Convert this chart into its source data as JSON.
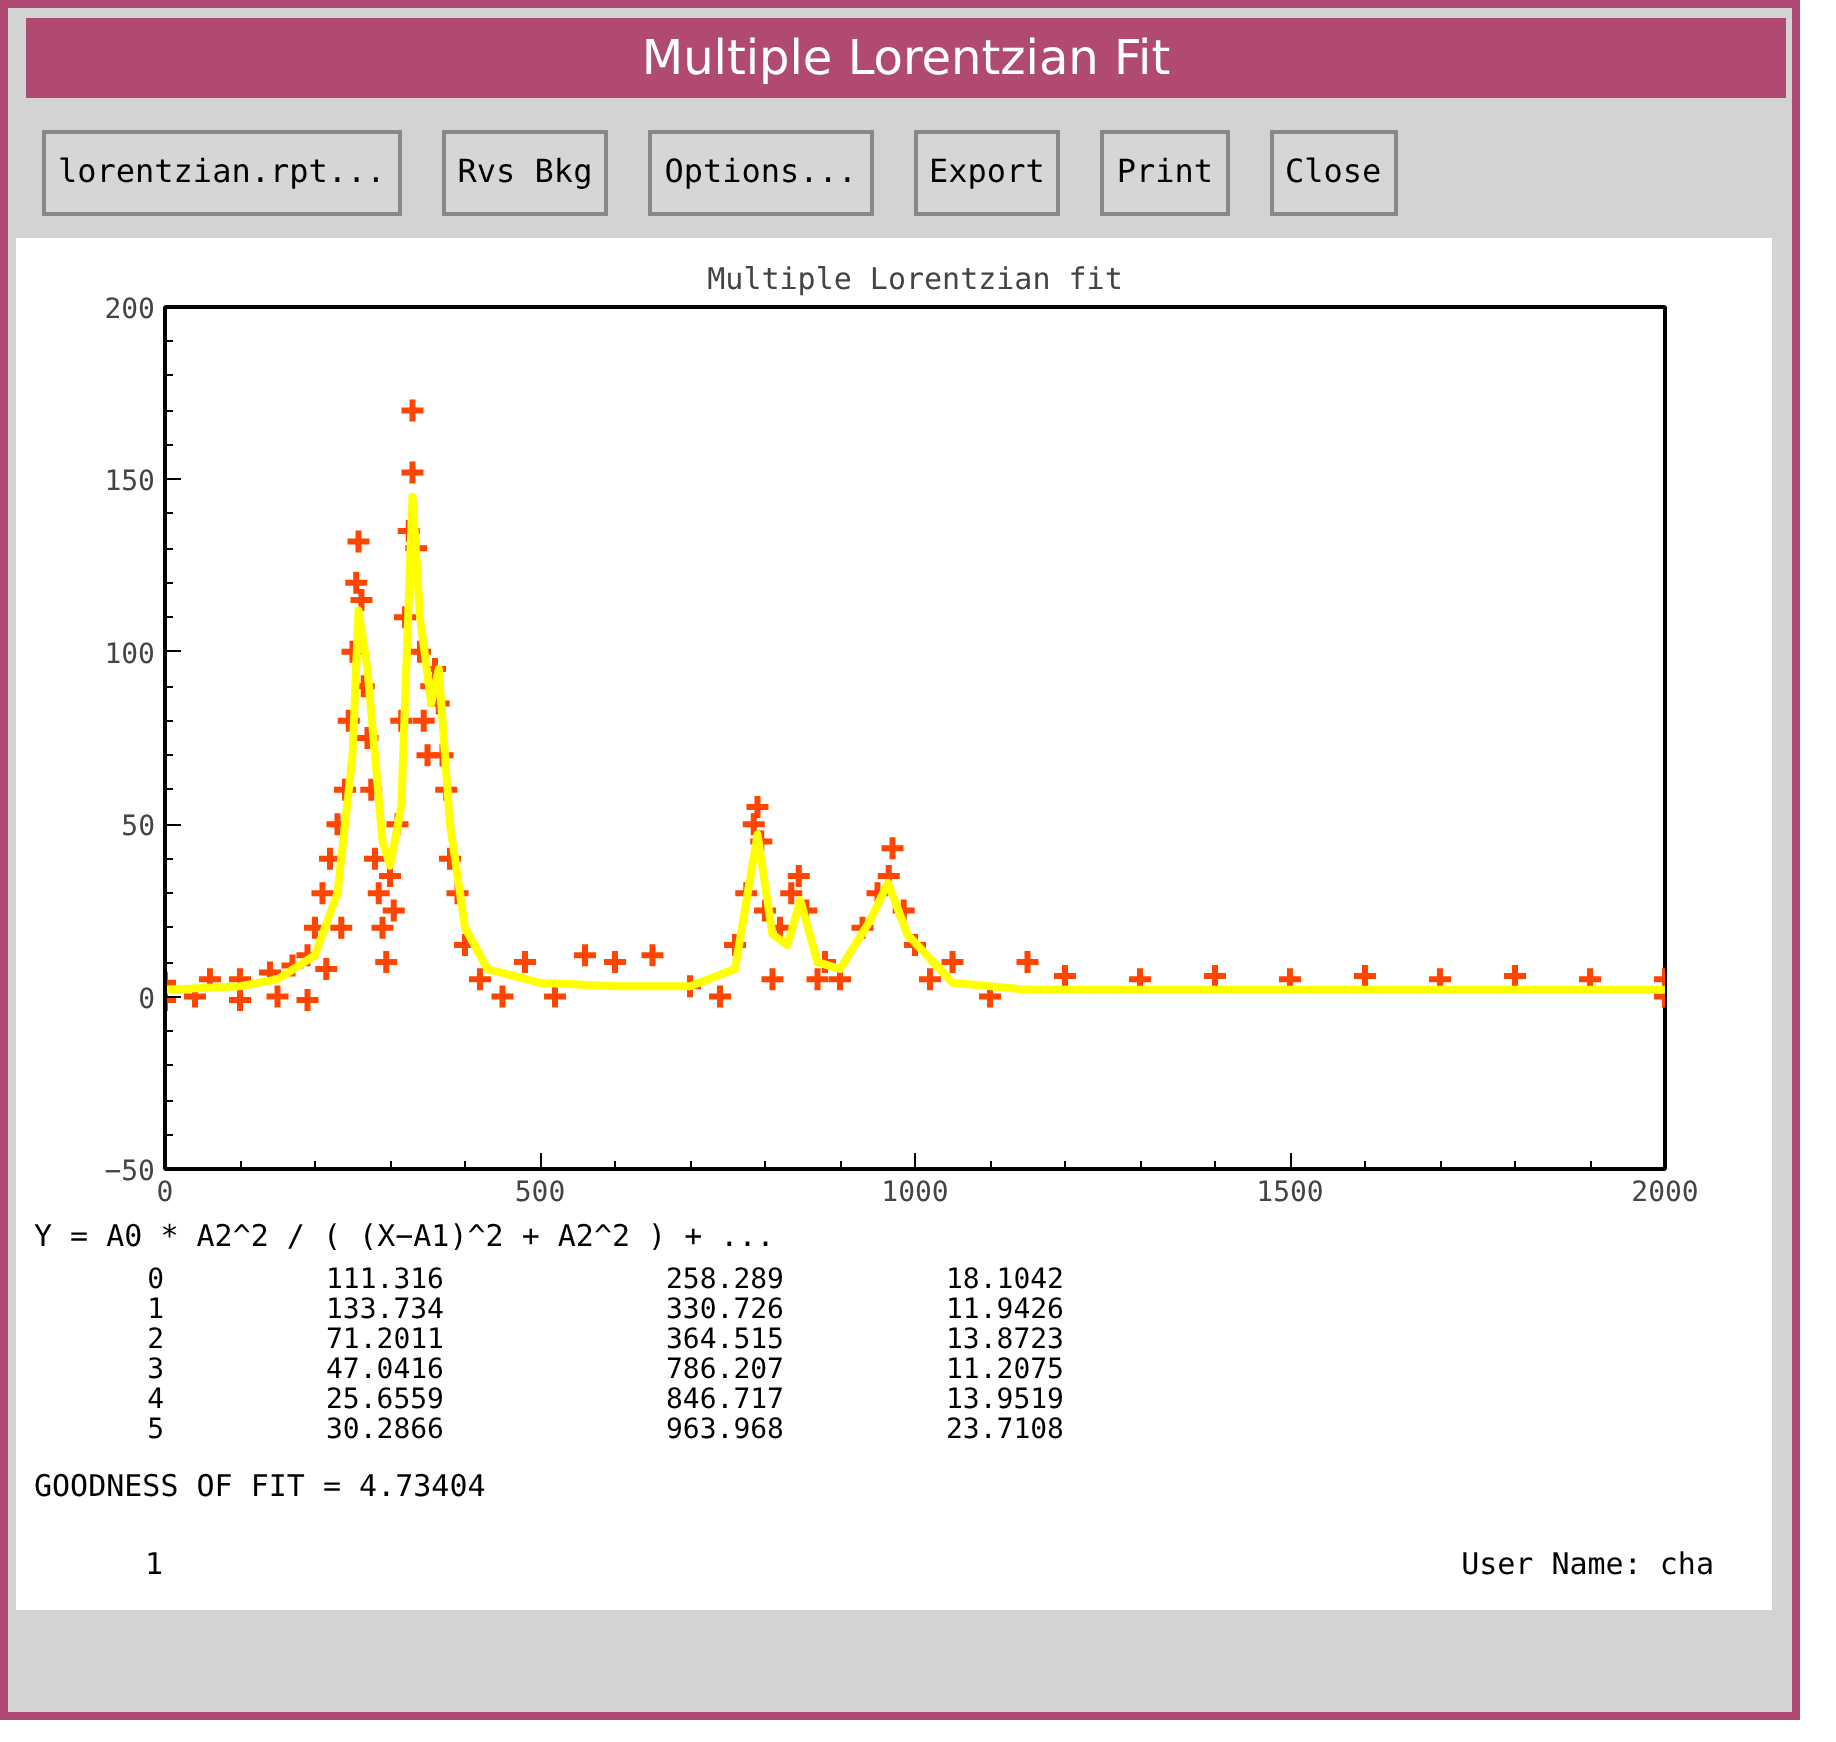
{
  "chart_data": {
    "type": "scatter",
    "title": "Multiple Lorentzian fit",
    "xlim": [
      0,
      2000
    ],
    "xticks": [
      0,
      500,
      1000,
      1500,
      2000
    ],
    "ylim": [
      -50,
      200
    ],
    "yticks": [
      -50,
      0,
      50,
      100,
      150,
      200
    ],
    "grid": false,
    "series": [
      {
        "marker": "cross",
        "color": "#ff4500",
        "x": [
          0,
          0,
          40,
          60,
          100,
          100,
          140,
          150,
          170,
          190,
          190,
          200,
          210,
          215,
          220,
          230,
          235,
          240,
          245,
          250,
          255,
          258,
          262,
          265,
          270,
          275,
          280,
          285,
          290,
          295,
          300,
          305,
          310,
          315,
          320,
          325,
          330,
          330,
          335,
          340,
          345,
          350,
          355,
          360,
          365,
          370,
          375,
          380,
          390,
          400,
          420,
          450,
          480,
          520,
          560,
          600,
          650,
          700,
          740,
          760,
          775,
          785,
          790,
          795,
          800,
          810,
          820,
          835,
          845,
          855,
          870,
          880,
          900,
          930,
          950,
          965,
          970,
          985,
          1000,
          1020,
          1050,
          1100,
          1150,
          1200,
          1300,
          1400,
          1500,
          1600,
          1700,
          1800,
          1900,
          2000,
          2000
        ],
        "values": [
          -1,
          4,
          0,
          5,
          -1,
          5,
          7,
          0,
          9,
          -1,
          12,
          20,
          30,
          8,
          40,
          50,
          20,
          60,
          80,
          100,
          120,
          132,
          115,
          90,
          75,
          60,
          40,
          30,
          20,
          10,
          35,
          25,
          50,
          80,
          110,
          135,
          152,
          170,
          130,
          100,
          80,
          70,
          90,
          95,
          85,
          70,
          60,
          40,
          30,
          15,
          5,
          0,
          10,
          0,
          12,
          10,
          12,
          3,
          0,
          15,
          30,
          50,
          55,
          45,
          25,
          5,
          20,
          30,
          35,
          25,
          5,
          10,
          5,
          20,
          30,
          35,
          43,
          25,
          15,
          5,
          10,
          0,
          10,
          6,
          5,
          6,
          5,
          6,
          5,
          6,
          5,
          5,
          0
        ]
      },
      {
        "type": "line",
        "line_style": "solid",
        "color": "#ffff00",
        "x": [
          0,
          100,
          150,
          200,
          230,
          250,
          258,
          270,
          290,
          300,
          315,
          330,
          340,
          355,
          365,
          380,
          400,
          430,
          500,
          600,
          700,
          760,
          790,
          810,
          830,
          847,
          870,
          900,
          940,
          964,
          990,
          1050,
          1150,
          2000
        ],
        "values": [
          2,
          3,
          5,
          12,
          30,
          70,
          112,
          95,
          45,
          38,
          55,
          145,
          110,
          85,
          95,
          50,
          20,
          8,
          4,
          3,
          3,
          8,
          47,
          18,
          15,
          28,
          10,
          8,
          22,
          33,
          18,
          4,
          2,
          2
        ]
      }
    ],
    "annotations": [
      "Multiple Lorentzian Fit",
      "lorentzian.rpt...",
      "Rvs Bkg",
      "Options...",
      "Export",
      "Print",
      "Close",
      "Y = A0 * A2^2 / ( (X−A1)^2 + A2^2 ) + ...",
      "0 111.316 258.289 18.1042",
      "1 133.734 330.726 11.9426",
      "2 71.2011 364.515 13.8723",
      "3 47.0416 786.207 11.2075",
      "4 25.6559 846.717 13.9519",
      "5 30.2866 963.968 23.7108",
      "GOODNESS OF FIT = 4.73404",
      "1",
      "User Name: cha"
    ]
  }
}
